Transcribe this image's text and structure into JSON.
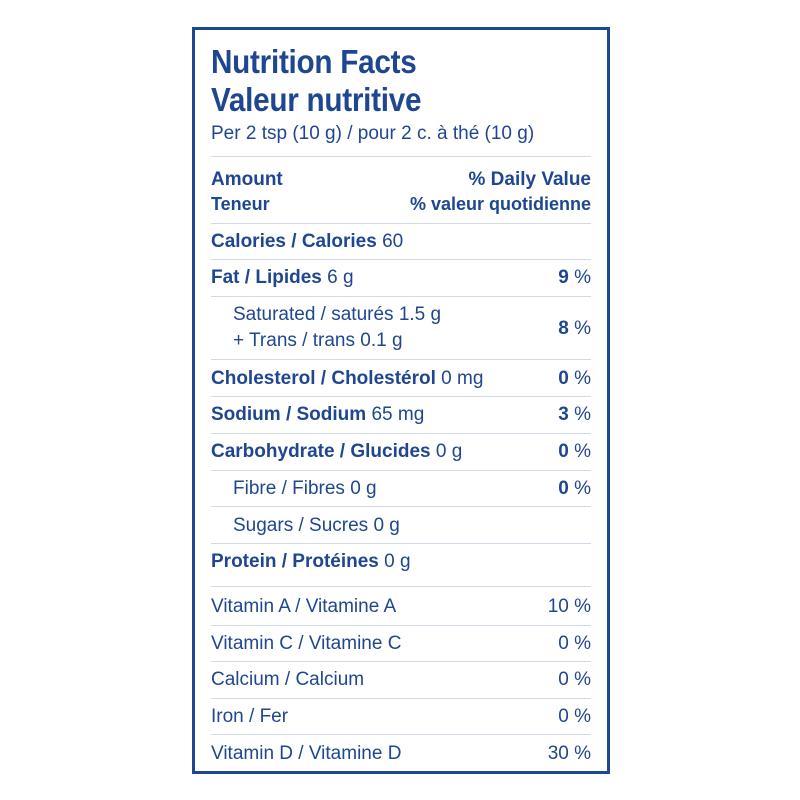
{
  "title_en": "Nutrition Facts",
  "title_fr": "Valeur nutritive",
  "serving": "Per 2 tsp (10 g) / pour 2 c. à thé (10 g)",
  "header": {
    "amount": "Amount",
    "amount_fr": "Teneur",
    "dv": "% Daily Value",
    "dv_fr": "% valeur quotidienne"
  },
  "calories": {
    "name": "Calories / Calories",
    "value": "60"
  },
  "fat": {
    "name": "Fat / Lipides",
    "amount": "6 g",
    "dv": "9",
    "pct": "%"
  },
  "saturated": {
    "line1": "Saturated / saturés 1.5 g",
    "line2": "+ Trans / trans 0.1 g",
    "dv": "8",
    "pct": "%"
  },
  "cholesterol": {
    "name": "Cholesterol / Cholestérol",
    "amount": "0 mg",
    "dv": "0",
    "pct": "%"
  },
  "sodium": {
    "name": "Sodium / Sodium",
    "amount": "65 mg",
    "dv": "3",
    "pct": "%"
  },
  "carbohydrate": {
    "name": "Carbohydrate / Glucides",
    "amount": "0 g",
    "dv": "0",
    "pct": "%"
  },
  "fibre": {
    "text": "Fibre / Fibres 0 g",
    "dv": "0",
    "pct": "%"
  },
  "sugars": {
    "text": "Sugars / Sucres 0 g"
  },
  "protein": {
    "name": "Protein / Protéines",
    "amount": "0 g"
  },
  "vitamins": [
    {
      "name": "Vitamin A / Vitamine A",
      "value": "10 %"
    },
    {
      "name": "Vitamin C / Vitamine C",
      "value": "0 %"
    },
    {
      "name": "Calcium / Calcium",
      "value": "0 %"
    },
    {
      "name": "Iron / Fer",
      "value": "0 %"
    },
    {
      "name": "Vitamin D / Vitamine D",
      "value": "30 %"
    }
  ],
  "colors": {
    "ink": "#1f4690",
    "rule": "#d4d9e6",
    "background": "#ffffff"
  }
}
